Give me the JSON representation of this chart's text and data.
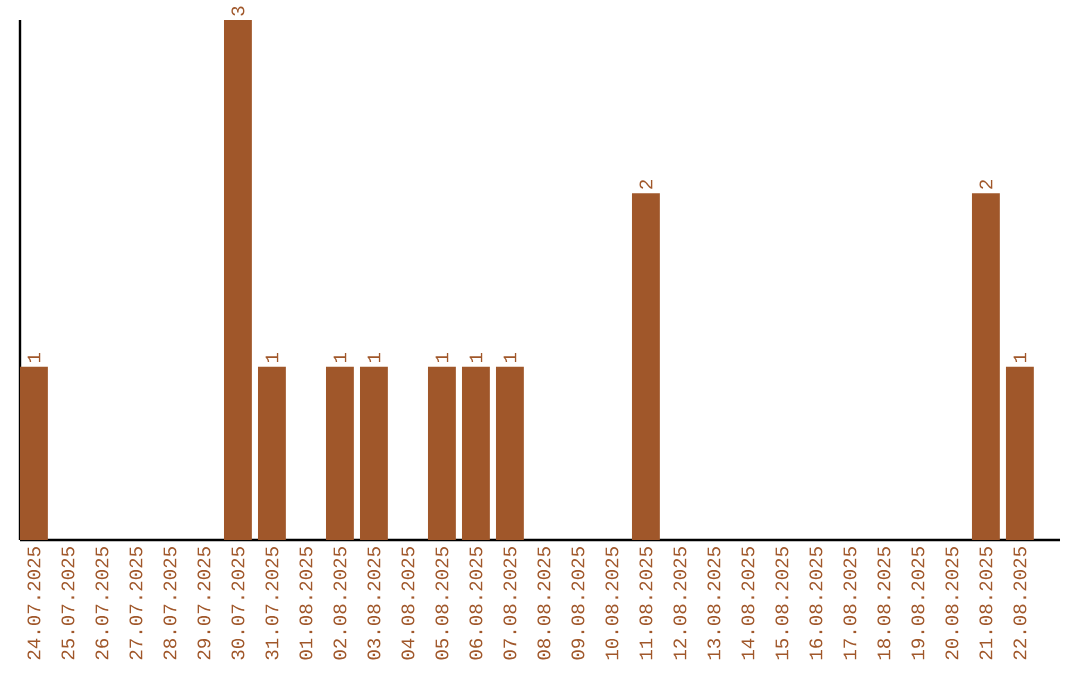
{
  "chart_data": {
    "type": "bar",
    "categories": [
      "24.07.2025",
      "25.07.2025",
      "26.07.2025",
      "27.07.2025",
      "28.07.2025",
      "29.07.2025",
      "30.07.2025",
      "31.07.2025",
      "01.08.2025",
      "02.08.2025",
      "03.08.2025",
      "04.08.2025",
      "05.08.2025",
      "06.08.2025",
      "07.08.2025",
      "08.08.2025",
      "09.08.2025",
      "10.08.2025",
      "11.08.2025",
      "12.08.2025",
      "13.08.2025",
      "14.08.2025",
      "15.08.2025",
      "16.08.2025",
      "17.08.2025",
      "18.08.2025",
      "19.08.2025",
      "20.08.2025",
      "21.08.2025",
      "22.08.2025"
    ],
    "values": [
      1,
      0,
      0,
      0,
      0,
      0,
      3,
      1,
      0,
      1,
      1,
      0,
      1,
      1,
      1,
      0,
      0,
      0,
      2,
      0,
      0,
      0,
      0,
      0,
      0,
      0,
      0,
      0,
      2,
      1
    ],
    "value_labels": [
      "1",
      null,
      null,
      null,
      null,
      null,
      "3",
      "1",
      null,
      "1",
      "1",
      null,
      "1",
      "1",
      "1",
      null,
      null,
      null,
      "2",
      null,
      null,
      null,
      null,
      null,
      null,
      null,
      null,
      null,
      "2",
      "1"
    ],
    "color": "#a0572a",
    "grid": false
  }
}
